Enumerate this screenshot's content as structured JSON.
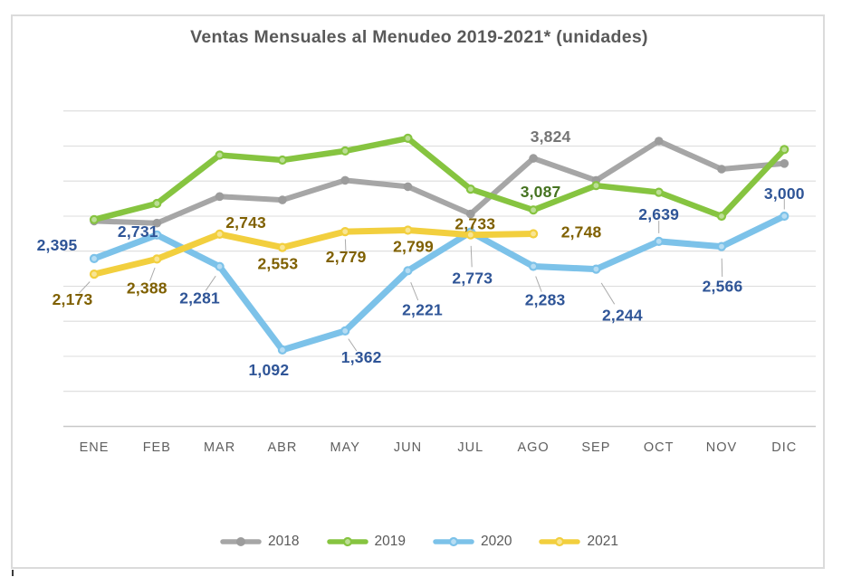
{
  "title": "Ventas Mensuales al Menudeo 2019-2021* (unidades)",
  "chart_data": {
    "type": "line",
    "title": "Ventas Mensuales al Menudeo 2019-2021* (unidades)",
    "xlabel": "",
    "ylabel": "",
    "categories": [
      "ENE",
      "FEB",
      "MAR",
      "ABR",
      "MAY",
      "JUN",
      "JUL",
      "AGO",
      "SEP",
      "OCT",
      "NOV",
      "DIC"
    ],
    "ylim": [
      0,
      4500
    ],
    "grid_step": 500,
    "y_axis_tick_labels_visible": false,
    "grid": true,
    "legend_position": "bottom",
    "colors": {
      "gridline": "#dcdcdc",
      "axis_line": "#c8c8c8",
      "leader": "#ababab",
      "title_text": "#595959",
      "axis_text": "#5f5f5f"
    },
    "series": [
      {
        "name": "2018",
        "color": "#a6a6a6",
        "marker": "filled",
        "marker_color": "#9c9c9c",
        "label_color": "#757575",
        "width": 6,
        "values": [
          2930,
          2900,
          3280,
          3230,
          3510,
          3420,
          3030,
          3824,
          3510,
          4070,
          3670,
          3750
        ],
        "labels": [
          {
            "i": 7,
            "text": "3,824",
            "dx": 19,
            "dy": -24,
            "leader": false
          }
        ]
      },
      {
        "name": "2019",
        "color": "#86c440",
        "marker": "ring",
        "label_color": "#467321",
        "width": 6.5,
        "values": [
          2950,
          3180,
          3870,
          3800,
          3930,
          4110,
          3385,
          3087,
          3435,
          3340,
          3000,
          3950
        ],
        "labels": [
          {
            "i": 7,
            "text": "3,087",
            "dx": 8,
            "dy": -20,
            "leader": false
          }
        ]
      },
      {
        "name": "2020",
        "color": "#7cc2e9",
        "marker": "ring",
        "label_color": "#2f5597",
        "width": 7,
        "values": [
          2395,
          2731,
          2281,
          1092,
          1362,
          2221,
          2773,
          2283,
          2244,
          2639,
          2566,
          3000
        ],
        "labels": [
          {
            "i": 0,
            "text": "2,395",
            "dx": -41,
            "dy": -15,
            "leader": false
          },
          {
            "i": 1,
            "text": "2,731",
            "dx": -21,
            "dy": -4,
            "leader": false
          },
          {
            "i": 2,
            "text": "2,281",
            "dx": -22,
            "dy": 35,
            "leader": true
          },
          {
            "i": 3,
            "text": "1,092",
            "dx": -15,
            "dy": 22,
            "leader": false
          },
          {
            "i": 4,
            "text": "1,362",
            "dx": 18,
            "dy": 29,
            "leader": true
          },
          {
            "i": 5,
            "text": "2,221",
            "dx": 16,
            "dy": 43,
            "leader": true
          },
          {
            "i": 6,
            "text": "2,773",
            "dx": 2,
            "dy": 51,
            "leader": true
          },
          {
            "i": 7,
            "text": "2,283",
            "dx": 13,
            "dy": 37,
            "leader": true
          },
          {
            "i": 8,
            "text": "2,244",
            "dx": 29,
            "dy": 51,
            "leader": true
          },
          {
            "i": 9,
            "text": "2,639",
            "dx": 0,
            "dy": -30,
            "leader": true
          },
          {
            "i": 10,
            "text": "2,566",
            "dx": 1,
            "dy": 44,
            "leader": true
          },
          {
            "i": 11,
            "text": "3,000",
            "dx": 0,
            "dy": -25,
            "leader": true
          }
        ]
      },
      {
        "name": "2021",
        "color": "#f2cf3e",
        "marker": "ring",
        "label_color": "#7f6000",
        "width": 7,
        "values": [
          2173,
          2388,
          2743,
          2553,
          2779,
          2799,
          2733,
          2748
        ],
        "labels": [
          {
            "i": 0,
            "text": "2,173",
            "dx": -24,
            "dy": 28,
            "leader": true
          },
          {
            "i": 1,
            "text": "2,388",
            "dx": -11,
            "dy": 32,
            "leader": true
          },
          {
            "i": 2,
            "text": "2,743",
            "dx": 29,
            "dy": -13,
            "leader": false
          },
          {
            "i": 3,
            "text": "2,553",
            "dx": -5,
            "dy": 18,
            "leader": false
          },
          {
            "i": 4,
            "text": "2,779",
            "dx": 1,
            "dy": 28,
            "leader": true
          },
          {
            "i": 5,
            "text": "2,799",
            "dx": 6,
            "dy": 18,
            "leader": false
          },
          {
            "i": 6,
            "text": "2,733",
            "dx": 5,
            "dy": -12,
            "leader": true
          },
          {
            "i": 7,
            "text": "2,748",
            "dx": 53,
            "dy": -2,
            "leader": false
          }
        ]
      }
    ]
  },
  "legend": {
    "items": [
      "2018",
      "2019",
      "2020",
      "2021"
    ]
  }
}
